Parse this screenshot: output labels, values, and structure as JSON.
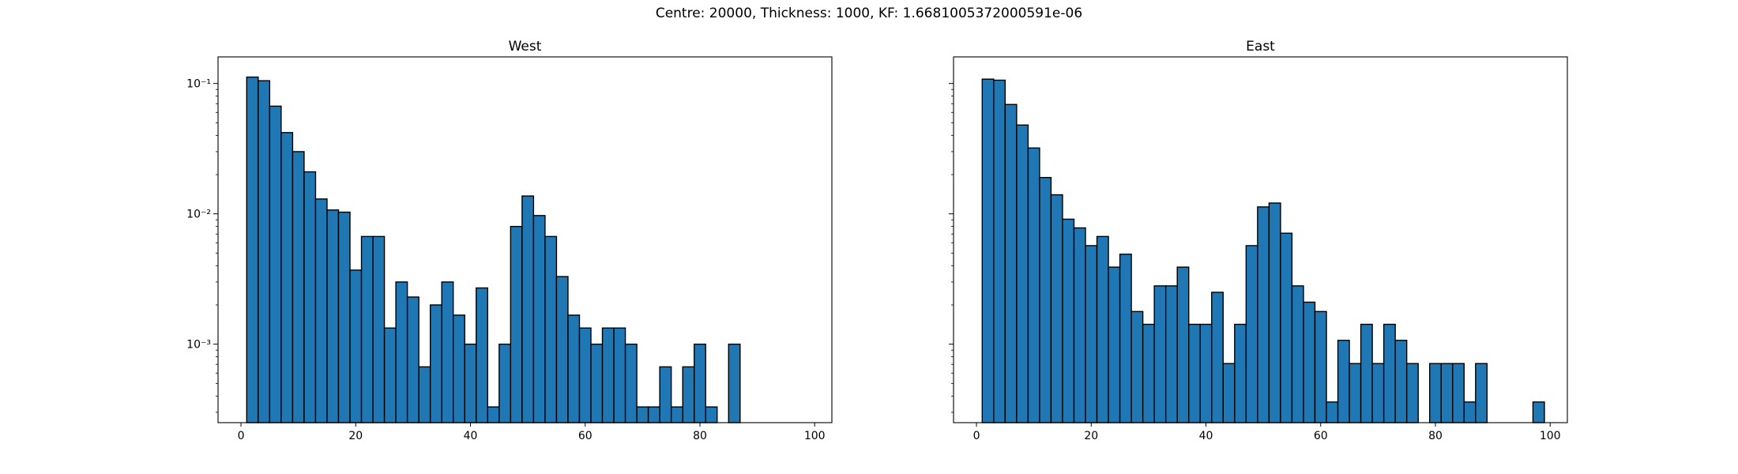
{
  "figure": {
    "suptitle": "Centre: 20000, Thickness: 1000, KF: 1.6681005372000591e-06"
  },
  "chart_data": [
    {
      "type": "bar",
      "title": "West",
      "xlabel": "",
      "ylabel": "",
      "yscale": "log",
      "xlim": [
        -4,
        103
      ],
      "ylim": [
        0.00025,
        0.16
      ],
      "xticks": [
        0,
        20,
        40,
        60,
        80,
        100
      ],
      "yticks": [
        0.001,
        0.01,
        0.1
      ],
      "ytick_labels": [
        "10⁻³",
        "10⁻²",
        "10⁻¹"
      ],
      "bin_width": 2,
      "bin_starts": [
        1,
        3,
        5,
        7,
        9,
        11,
        13,
        15,
        17,
        19,
        21,
        23,
        25,
        27,
        29,
        31,
        33,
        35,
        37,
        39,
        41,
        43,
        45,
        47,
        49,
        51,
        53,
        55,
        57,
        59,
        61,
        63,
        65,
        67,
        69,
        71,
        73,
        75,
        77,
        79,
        81,
        83,
        85
      ],
      "values": [
        0.112,
        0.105,
        0.067,
        0.042,
        0.03,
        0.021,
        0.013,
        0.0107,
        0.0103,
        0.0037,
        0.0067,
        0.0067,
        0.00133,
        0.003,
        0.0023,
        0.00067,
        0.002,
        0.003,
        0.00167,
        0.001,
        0.0027,
        0.00033,
        0.001,
        0.008,
        0.0137,
        0.0097,
        0.0067,
        0.0033,
        0.00167,
        0.00133,
        0.001,
        0.00133,
        0.00133,
        0.001,
        0.00033,
        0.00033,
        0.00067,
        0.00033,
        0.00067,
        0.001,
        0.00033,
        0,
        0.001
      ],
      "color": "#1f77b4",
      "edgecolor": "#000000",
      "grid": false
    },
    {
      "type": "bar",
      "title": "East",
      "xlabel": "",
      "ylabel": "",
      "yscale": "log",
      "xlim": [
        -4,
        103
      ],
      "ylim": [
        0.00025,
        0.16
      ],
      "xticks": [
        0,
        20,
        40,
        60,
        80,
        100
      ],
      "yticks": [
        0.001,
        0.01,
        0.1
      ],
      "ytick_labels": [],
      "bin_width": 2,
      "bin_starts": [
        1,
        3,
        5,
        7,
        9,
        11,
        13,
        15,
        17,
        19,
        21,
        23,
        25,
        27,
        29,
        31,
        33,
        35,
        37,
        39,
        41,
        43,
        45,
        47,
        49,
        51,
        53,
        55,
        57,
        59,
        61,
        63,
        65,
        67,
        69,
        71,
        73,
        75,
        77,
        79,
        81,
        83,
        85,
        87,
        89,
        91,
        93,
        95,
        97
      ],
      "values": [
        0.108,
        0.106,
        0.069,
        0.048,
        0.032,
        0.019,
        0.014,
        0.0091,
        0.0078,
        0.0057,
        0.0067,
        0.0039,
        0.0049,
        0.00178,
        0.00142,
        0.0028,
        0.0028,
        0.0039,
        0.00142,
        0.00142,
        0.0025,
        0.00071,
        0.00142,
        0.0057,
        0.0113,
        0.0121,
        0.0071,
        0.0028,
        0.0021,
        0.00178,
        0.00036,
        0.00107,
        0.00071,
        0.00142,
        0.00071,
        0.00142,
        0.00107,
        0.00071,
        0,
        0.00071,
        0.00071,
        0.00071,
        0.00036,
        0.00071,
        0,
        0,
        0,
        0,
        0.00036
      ],
      "color": "#1f77b4",
      "edgecolor": "#000000",
      "grid": false
    }
  ]
}
